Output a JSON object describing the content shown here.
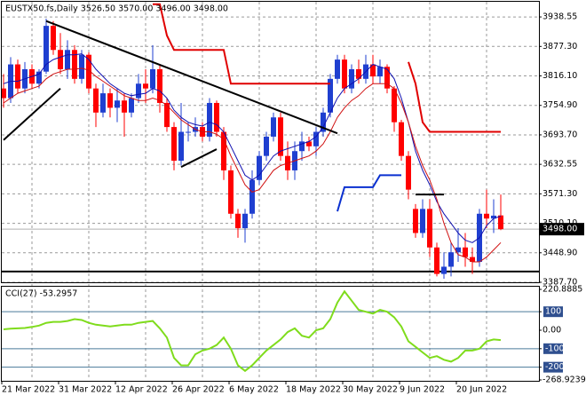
{
  "chart_data": [
    {
      "type": "candlestick",
      "title": "EUSTX50.fs,Daily  3526.50 3570.00 3496.00 3498.00",
      "categories": [
        "21 Mar 2022",
        null,
        null,
        null,
        null,
        null,
        null,
        null,
        "31 Mar 2022",
        null,
        null,
        null,
        null,
        null,
        null,
        null,
        "12 Apr 2022",
        null,
        null,
        null,
        null,
        null,
        null,
        null,
        "26 Apr 2022",
        null,
        null,
        null,
        null,
        null,
        null,
        null,
        "6 May 2022",
        null,
        null,
        null,
        null,
        null,
        null,
        null,
        "18 May 2022",
        null,
        null,
        null,
        null,
        null,
        null,
        null,
        "30 May 2022",
        null,
        null,
        null,
        null,
        null,
        null,
        null,
        "9 Jun 2022",
        null,
        null,
        null,
        null,
        null,
        null,
        null,
        "20 Jun 2022",
        null,
        null,
        null,
        null,
        null,
        null
      ],
      "open": [
        3790,
        3770,
        3840,
        3790,
        3830,
        3800,
        3825,
        3920,
        3870,
        3830,
        3870,
        3810,
        3860,
        3790,
        3740,
        3780,
        3750,
        3765,
        3740,
        3770,
        3800,
        3790,
        3830,
        3760,
        3710,
        3640,
        3700,
        3700,
        3710,
        3690,
        3760,
        3700,
        3620,
        3530,
        3500,
        3530,
        3600,
        3650,
        3690,
        3730,
        3650,
        3620,
        3660,
        3680,
        3670,
        3700,
        3740,
        3810,
        3850,
        3790,
        3830,
        3810,
        3840,
        3815,
        3835,
        3790,
        3720,
        3650,
        3540,
        3490,
        3540,
        3460,
        3405,
        3420,
        3450,
        3460,
        3440,
        3430,
        3530,
        3520,
        3526.5
      ],
      "high": [
        3820,
        3855,
        3850,
        3845,
        3840,
        3830,
        3935,
        3930,
        3905,
        3890,
        3880,
        3870,
        3865,
        3800,
        3800,
        3790,
        3790,
        3780,
        3780,
        3820,
        3830,
        3880,
        3840,
        3770,
        3720,
        3760,
        3720,
        3730,
        3720,
        3770,
        3765,
        3710,
        3630,
        3540,
        3540,
        3620,
        3660,
        3700,
        3740,
        3740,
        3680,
        3680,
        3700,
        3690,
        3710,
        3750,
        3820,
        3860,
        3860,
        3840,
        3850,
        3860,
        3860,
        3850,
        3840,
        3795,
        3725,
        3660,
        3550,
        3560,
        3560,
        3470,
        3450,
        3470,
        3500,
        3490,
        3460,
        3540,
        3580,
        3560,
        3570
      ],
      "low": [
        3750,
        3760,
        3780,
        3780,
        3790,
        3790,
        3820,
        3860,
        3820,
        3810,
        3800,
        3800,
        3780,
        3710,
        3730,
        3730,
        3720,
        3690,
        3730,
        3760,
        3760,
        3780,
        3740,
        3700,
        3620,
        3630,
        3680,
        3690,
        3680,
        3680,
        3690,
        3600,
        3520,
        3480,
        3470,
        3520,
        3590,
        3640,
        3680,
        3640,
        3600,
        3600,
        3640,
        3660,
        3650,
        3690,
        3730,
        3800,
        3780,
        3780,
        3800,
        3800,
        3800,
        3800,
        3780,
        3700,
        3640,
        3560,
        3480,
        3480,
        3440,
        3400,
        3395,
        3400,
        3430,
        3420,
        3405,
        3420,
        3500,
        3490,
        3496
      ],
      "close": [
        3770,
        3840,
        3790,
        3830,
        3800,
        3825,
        3920,
        3870,
        3830,
        3870,
        3810,
        3860,
        3790,
        3740,
        3780,
        3750,
        3765,
        3740,
        3770,
        3800,
        3790,
        3830,
        3760,
        3710,
        3640,
        3700,
        3700,
        3710,
        3690,
        3760,
        3700,
        3620,
        3530,
        3500,
        3530,
        3600,
        3650,
        3690,
        3730,
        3650,
        3620,
        3660,
        3680,
        3670,
        3700,
        3740,
        3810,
        3850,
        3790,
        3830,
        3810,
        3840,
        3815,
        3835,
        3790,
        3720,
        3650,
        3580,
        3490,
        3540,
        3460,
        3405,
        3420,
        3450,
        3460,
        3440,
        3430,
        3530,
        3520,
        3526,
        3498
      ],
      "up_color": "#1f3fd0",
      "down_color": "#ff0000",
      "overlays": [
        {
          "color": "#1010b0",
          "values": [
            3800,
            3805,
            3805,
            3810,
            3815,
            3820,
            3840,
            3850,
            3855,
            3860,
            3860,
            3862,
            3850,
            3830,
            3815,
            3800,
            3790,
            3780,
            3775,
            3778,
            3780,
            3790,
            3785,
            3770,
            3745,
            3730,
            3720,
            3715,
            3712,
            3720,
            3715,
            3700,
            3670,
            3640,
            3610,
            3600,
            3610,
            3630,
            3650,
            3660,
            3665,
            3670,
            3675,
            3680,
            3690,
            3710,
            3740,
            3770,
            3790,
            3800,
            3810,
            3825,
            3840,
            3835,
            3830,
            3810,
            3770,
            3720,
            3660,
            3620,
            3590,
            3555,
            3530,
            3510,
            3490,
            3475,
            3470,
            3480,
            3505,
            3520,
            3525
          ]
        },
        {
          "color": "#d01010",
          "values": [
            3760,
            3770,
            3780,
            3785,
            3790,
            3795,
            3810,
            3820,
            3825,
            3830,
            3830,
            3832,
            3828,
            3815,
            3805,
            3795,
            3785,
            3775,
            3770,
            3765,
            3765,
            3770,
            3765,
            3755,
            3740,
            3725,
            3715,
            3705,
            3700,
            3700,
            3695,
            3685,
            3650,
            3620,
            3590,
            3575,
            3580,
            3600,
            3620,
            3630,
            3635,
            3640,
            3645,
            3650,
            3660,
            3675,
            3700,
            3730,
            3750,
            3765,
            3775,
            3790,
            3800,
            3800,
            3800,
            3790,
            3760,
            3720,
            3670,
            3630,
            3600,
            3560,
            3510,
            3470,
            3445,
            3440,
            3430,
            3430,
            3440,
            3455,
            3470
          ]
        },
        {
          "color": "#e00000",
          "values": [
            null,
            null,
            null,
            null,
            null,
            null,
            null,
            null,
            null,
            null,
            null,
            null,
            null,
            null,
            null,
            null,
            null,
            null,
            null,
            null,
            null,
            3965,
            3965,
            3900,
            3870,
            3870,
            3870,
            3870,
            3870,
            3870,
            3870,
            3870,
            3800,
            3800,
            3800,
            3800,
            3800,
            3800,
            3800,
            3800,
            3800,
            3800,
            3800,
            3800,
            3800,
            3800,
            3800,
            null,
            null,
            null,
            null,
            null,
            null,
            null,
            null,
            null,
            null,
            3845,
            3800,
            3720,
            3700,
            3700,
            3700,
            3700,
            3700,
            3700,
            3700,
            3700,
            3700,
            3700,
            3700
          ]
        },
        {
          "color": "#0a30d0",
          "values": [
            null,
            null,
            null,
            null,
            null,
            null,
            null,
            null,
            null,
            null,
            null,
            null,
            null,
            null,
            null,
            null,
            null,
            null,
            null,
            null,
            null,
            null,
            null,
            null,
            null,
            null,
            null,
            null,
            null,
            null,
            null,
            null,
            null,
            null,
            null,
            null,
            null,
            null,
            null,
            null,
            null,
            null,
            null,
            null,
            null,
            null,
            null,
            3535,
            3585,
            3585,
            3585,
            3585,
            3585,
            3610,
            3610,
            3610,
            3610,
            null,
            null,
            null,
            null,
            null,
            null,
            null,
            null,
            null,
            null,
            null,
            null,
            null,
            null
          ]
        }
      ],
      "trendlines": [
        {
          "x": [
            6,
            47
          ],
          "y": [
            3930,
            3697
          ]
        },
        {
          "x": [
            0,
            8
          ],
          "y": [
            3683,
            3790
          ]
        },
        {
          "x": [
            25,
            30
          ],
          "y": [
            3627,
            3664
          ]
        },
        {
          "x": [
            58,
            62
          ],
          "y": [
            3570,
            3570
          ]
        }
      ],
      "hlines": [
        3410
      ],
      "last_price": {
        "value": 3498,
        "label": "3498.00"
      },
      "ylim": [
        3387.7,
        3970
      ],
      "yticks": [
        3938.55,
        {
          "value": 3877.3,
          "label": "3877.30"
        },
        {
          "value": 3816.1,
          "label": "3816.10"
        },
        {
          "value": 3754.9,
          "label": "3754.90"
        },
        {
          "value": 3693.7,
          "label": "3693.70"
        },
        3632.55,
        {
          "value": 3571.3,
          "label": "3571.30"
        },
        {
          "value": 3510.1,
          "label": "3510.10"
        },
        {
          "value": 3448.9,
          "label": "3448.90"
        },
        {
          "value": 3387.7,
          "label": "3387.70"
        }
      ],
      "grid": true
    },
    {
      "type": "line",
      "title": "CCI(27) -53.2957",
      "color": "#7fdc1c",
      "values": [
        5,
        8,
        10,
        12,
        18,
        25,
        40,
        45,
        45,
        50,
        60,
        55,
        40,
        30,
        25,
        20,
        25,
        30,
        30,
        40,
        45,
        50,
        10,
        -40,
        -150,
        -190,
        -190,
        -130,
        -110,
        -100,
        -80,
        -40,
        -100,
        -190,
        -220,
        -190,
        -150,
        -110,
        -80,
        -50,
        -10,
        10,
        -30,
        -40,
        0,
        10,
        60,
        150,
        210,
        160,
        110,
        100,
        90,
        110,
        100,
        70,
        20,
        -60,
        -90,
        -120,
        -150,
        -140,
        -160,
        -170,
        -150,
        -110,
        -110,
        -100,
        -60,
        -50,
        -53.2957
      ],
      "levels": [
        100,
        -100,
        -200
      ],
      "ylim": [
        -268.9239,
        220.8885
      ],
      "yticks": [
        220.8885,
        100,
        {
          "value": 0,
          "label": "0.00"
        },
        -100,
        -200,
        -268.9239
      ]
    }
  ]
}
